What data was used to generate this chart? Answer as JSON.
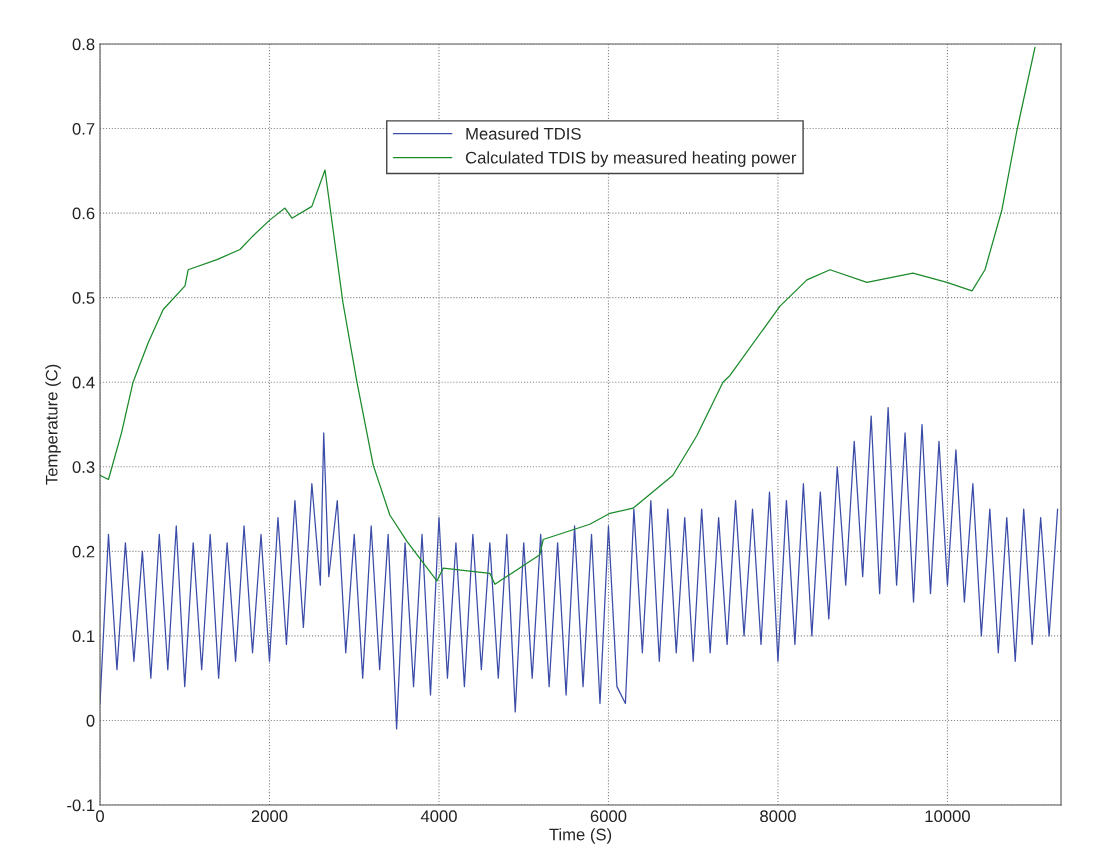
{
  "chart_data": {
    "type": "line",
    "xlabel": "Time (S)",
    "ylabel": "Temperature (C)",
    "xlim": [
      0,
      11340
    ],
    "xticks": [
      0,
      2000,
      4000,
      6000,
      8000,
      10000
    ],
    "ylim": [
      -0.1,
      0.8
    ],
    "yticks": [
      -0.1,
      0,
      0.1,
      0.2,
      0.3,
      0.4,
      0.5,
      0.6,
      0.7,
      0.8
    ],
    "grid": true,
    "legend": "top",
    "line_style": "solid",
    "marker": "none",
    "series": [
      {
        "name": "Measured TDIS",
        "color": "#3a4ba8",
        "x": [
          0,
          100,
          200,
          300,
          400,
          500,
          600,
          700,
          800,
          900,
          1000,
          1100,
          1200,
          1300,
          1400,
          1500,
          1600,
          1700,
          1800,
          1900,
          2000,
          2100,
          2200,
          2300,
          2400,
          2500,
          2600,
          2640,
          2700,
          2800,
          2900,
          3000,
          3100,
          3200,
          3300,
          3400,
          3500,
          3600,
          3700,
          3800,
          3900,
          4000,
          4100,
          4200,
          4300,
          4400,
          4500,
          4600,
          4700,
          4800,
          4900,
          5000,
          5100,
          5200,
          5300,
          5400,
          5500,
          5600,
          5700,
          5800,
          5900,
          6000,
          6100,
          6200,
          6300,
          6400,
          6500,
          6600,
          6700,
          6800,
          6900,
          7000,
          7100,
          7200,
          7300,
          7400,
          7500,
          7600,
          7700,
          7800,
          7900,
          8000,
          8100,
          8200,
          8300,
          8400,
          8500,
          8600,
          8700,
          8800,
          8900,
          9000,
          9100,
          9200,
          9300,
          9400,
          9500,
          9600,
          9700,
          9800,
          9900,
          10000,
          10100,
          10200,
          10300,
          10400,
          10500,
          10600,
          10700,
          10800,
          10900,
          11000,
          11100,
          11200,
          11300
        ],
        "values": [
          0.02,
          0.22,
          0.06,
          0.21,
          0.07,
          0.2,
          0.05,
          0.22,
          0.06,
          0.23,
          0.04,
          0.21,
          0.06,
          0.22,
          0.05,
          0.21,
          0.07,
          0.23,
          0.08,
          0.22,
          0.07,
          0.24,
          0.09,
          0.26,
          0.11,
          0.28,
          0.16,
          0.34,
          0.17,
          0.26,
          0.08,
          0.22,
          0.05,
          0.23,
          0.06,
          0.22,
          -0.01,
          0.21,
          0.04,
          0.22,
          0.03,
          0.24,
          0.05,
          0.21,
          0.04,
          0.22,
          0.06,
          0.21,
          0.05,
          0.22,
          0.01,
          0.21,
          0.05,
          0.22,
          0.04,
          0.21,
          0.03,
          0.23,
          0.04,
          0.22,
          0.02,
          0.23,
          0.04,
          0.02,
          0.25,
          0.08,
          0.26,
          0.07,
          0.25,
          0.08,
          0.24,
          0.07,
          0.25,
          0.08,
          0.24,
          0.09,
          0.26,
          0.1,
          0.25,
          0.09,
          0.27,
          0.07,
          0.26,
          0.09,
          0.28,
          0.1,
          0.27,
          0.12,
          0.3,
          0.16,
          0.33,
          0.17,
          0.36,
          0.15,
          0.37,
          0.16,
          0.34,
          0.14,
          0.35,
          0.15,
          0.33,
          0.16,
          0.32,
          0.14,
          0.28,
          0.1,
          0.25,
          0.08,
          0.24,
          0.07,
          0.25,
          0.09,
          0.24,
          0.1,
          0.25
        ]
      },
      {
        "name": "Calculated TDIS by measured heating power",
        "color": "#1a8a2a",
        "x": [
          0,
          100,
          256,
          390,
          570,
          746,
          1003,
          1040,
          1380,
          1652,
          1805,
          2006,
          2183,
          2265,
          2500,
          2655,
          2867,
          3032,
          3224,
          3420,
          3620,
          3975,
          4050,
          4600,
          4660,
          5190,
          5230,
          5780,
          6018,
          6290,
          6761,
          7044,
          7351,
          7434,
          8024,
          8342,
          8614,
          9050,
          9593,
          9994,
          10290,
          10443,
          10643,
          10820,
          11033
        ],
        "values": [
          0.29,
          0.285,
          0.341,
          0.4,
          0.447,
          0.486,
          0.514,
          0.533,
          0.545,
          0.557,
          0.573,
          0.592,
          0.606,
          0.594,
          0.608,
          0.651,
          0.494,
          0.4,
          0.302,
          0.243,
          0.212,
          0.165,
          0.18,
          0.174,
          0.161,
          0.196,
          0.214,
          0.232,
          0.245,
          0.251,
          0.29,
          0.337,
          0.4,
          0.408,
          0.49,
          0.521,
          0.533,
          0.518,
          0.529,
          0.518,
          0.508,
          0.533,
          0.604,
          0.698,
          0.796
        ]
      }
    ]
  }
}
